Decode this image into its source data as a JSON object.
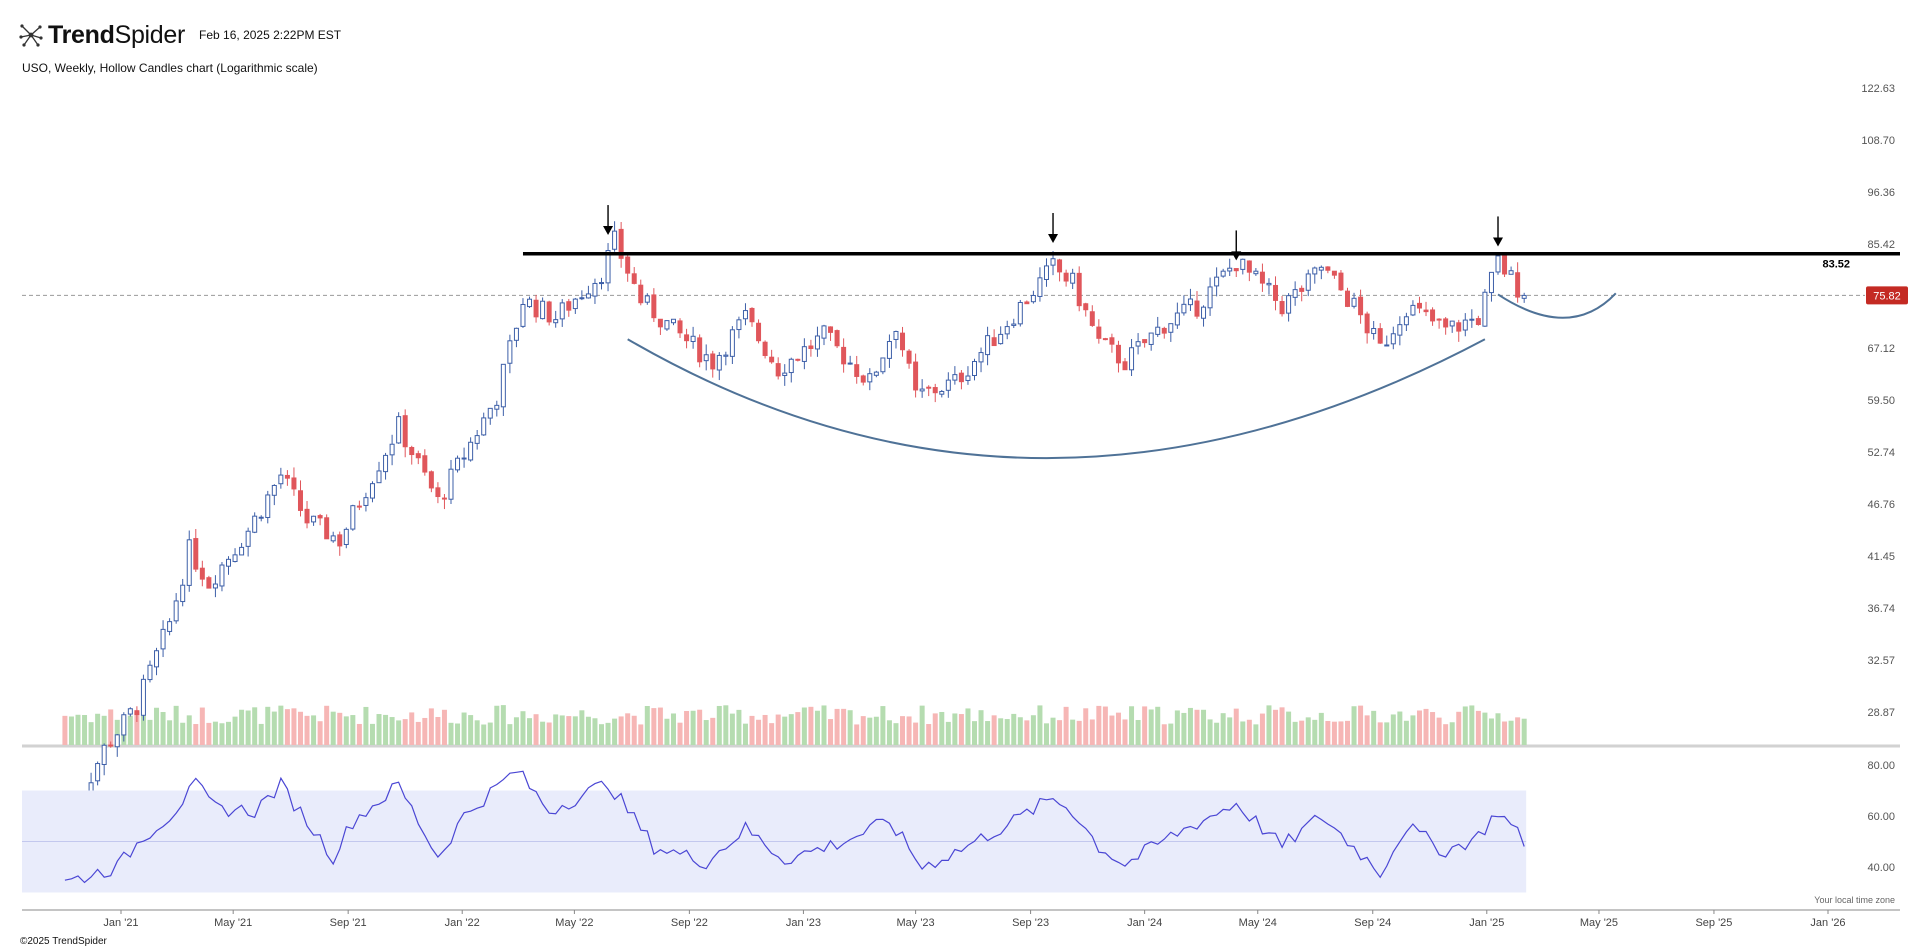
{
  "header": {
    "brand_part1": "Trend",
    "brand_part2": "Spider",
    "timestamp": "Feb 16, 2025 2:22PM EST"
  },
  "footer": {
    "copyright": "©2025 TrendSpider",
    "timezone_note": "Your local time zone"
  },
  "colors": {
    "up": "#3d5fa8",
    "down": "#e0565b",
    "vol_up": "#b5dcb0",
    "vol_down": "#f6b6b5",
    "rsi_line": "#4a46d4",
    "rsi_band": "#e9ecfb",
    "curve": "#4f7297",
    "resistance": "#000000",
    "price_badge": "#c42a23"
  },
  "chart_data": {
    "type": "candlestick",
    "title": "USO, Weekly, Hollow Candles chart (Logarithmic scale)",
    "scale": "log",
    "y_ticks": [
      28.87,
      32.57,
      36.74,
      41.45,
      46.76,
      52.74,
      59.5,
      67.12,
      75.82,
      85.42,
      96.36,
      108.7,
      122.63
    ],
    "x_ticks": [
      "Jan '21",
      "May '21",
      "Sep '21",
      "Jan '22",
      "May '22",
      "Sep '22",
      "Jan '23",
      "May '23",
      "Sep '23",
      "Jan '24",
      "May '24",
      "Sep '24",
      "Jan '25",
      "May '25",
      "Sep '25",
      "Jan '26"
    ],
    "x_tick_dates": [
      "2021-01-01",
      "2021-05-01",
      "2021-09-01",
      "2022-01-01",
      "2022-05-01",
      "2022-09-01",
      "2023-01-01",
      "2023-05-01",
      "2023-09-01",
      "2024-01-01",
      "2024-05-01",
      "2024-09-01",
      "2025-01-01",
      "2025-05-01",
      "2025-09-01",
      "2026-01-01"
    ],
    "resistance_level": 83.52,
    "resistance_label": "83.52",
    "last_price": 75.82,
    "last_price_label": "75.82",
    "arrow_dates": [
      "2022-06-06",
      "2023-09-25",
      "2024-04-08",
      "2025-01-13"
    ],
    "cup_curve_points": [
      {
        "date": "2022-06-27",
        "price": 68.5
      },
      {
        "date": "2023-09-18",
        "price": 52.0
      },
      {
        "date": "2024-12-30",
        "price": 68.5
      }
    ],
    "handle_curve_points": [
      {
        "date": "2025-01-13",
        "price": 76.0
      },
      {
        "date": "2025-03-24",
        "price": 72.0
      },
      {
        "date": "2025-05-19",
        "price": 76.2
      }
    ],
    "close_path": [
      {
        "date": "2020-11-02",
        "price": 22.0
      },
      {
        "date": "2020-12-14",
        "price": 26.5
      },
      {
        "date": "2021-01-18",
        "price": 29.3
      },
      {
        "date": "2021-02-22",
        "price": 35.5
      },
      {
        "date": "2021-03-15",
        "price": 42.0
      },
      {
        "date": "2021-04-05",
        "price": 39.0
      },
      {
        "date": "2021-05-17",
        "price": 44.0
      },
      {
        "date": "2021-06-21",
        "price": 50.0
      },
      {
        "date": "2021-07-19",
        "price": 45.0
      },
      {
        "date": "2021-08-23",
        "price": 43.0
      },
      {
        "date": "2021-09-27",
        "price": 50.0
      },
      {
        "date": "2021-10-25",
        "price": 56.0
      },
      {
        "date": "2021-12-06",
        "price": 47.0
      },
      {
        "date": "2021-12-27",
        "price": 51.0
      },
      {
        "date": "2022-02-07",
        "price": 60.0
      },
      {
        "date": "2022-03-07",
        "price": 75.0
      },
      {
        "date": "2022-04-11",
        "price": 72.0
      },
      {
        "date": "2022-05-30",
        "price": 80.0
      },
      {
        "date": "2022-06-13",
        "price": 86.0
      },
      {
        "date": "2022-07-11",
        "price": 75.0
      },
      {
        "date": "2022-08-15",
        "price": 70.0
      },
      {
        "date": "2022-09-26",
        "price": 65.0
      },
      {
        "date": "2022-10-31",
        "price": 72.0
      },
      {
        "date": "2022-12-05",
        "price": 64.0
      },
      {
        "date": "2023-01-23",
        "price": 69.0
      },
      {
        "date": "2023-03-13",
        "price": 62.0
      },
      {
        "date": "2023-04-10",
        "price": 71.0
      },
      {
        "date": "2023-05-01",
        "price": 60.0
      },
      {
        "date": "2023-06-12",
        "price": 62.0
      },
      {
        "date": "2023-07-31",
        "price": 70.0
      },
      {
        "date": "2023-09-25",
        "price": 81.0
      },
      {
        "date": "2023-10-16",
        "price": 78.0
      },
      {
        "date": "2023-11-13",
        "price": 68.0
      },
      {
        "date": "2023-12-11",
        "price": 65.0
      },
      {
        "date": "2024-01-22",
        "price": 71.0
      },
      {
        "date": "2024-02-26",
        "price": 74.0
      },
      {
        "date": "2024-04-08",
        "price": 82.0
      },
      {
        "date": "2024-05-27",
        "price": 74.0
      },
      {
        "date": "2024-06-24",
        "price": 78.0
      },
      {
        "date": "2024-07-08",
        "price": 81.0
      },
      {
        "date": "2024-08-12",
        "price": 74.0
      },
      {
        "date": "2024-09-09",
        "price": 67.0
      },
      {
        "date": "2024-10-07",
        "price": 74.0
      },
      {
        "date": "2024-11-18",
        "price": 70.0
      },
      {
        "date": "2024-12-23",
        "price": 72.0
      },
      {
        "date": "2025-01-13",
        "price": 82.0
      },
      {
        "date": "2025-02-10",
        "price": 75.82
      }
    ],
    "volume_note": "Volume bars shown without a printed scale",
    "rsi": {
      "y_ticks": [
        "80.00",
        "60.00",
        "40.00"
      ],
      "band": [
        30,
        70
      ],
      "midline": 50,
      "path": [
        {
          "date": "2020-11-02",
          "value": 34
        },
        {
          "date": "2020-12-28",
          "value": 40
        },
        {
          "date": "2021-01-25",
          "value": 52
        },
        {
          "date": "2021-02-22",
          "value": 60
        },
        {
          "date": "2021-03-22",
          "value": 72
        },
        {
          "date": "2021-04-12",
          "value": 63
        },
        {
          "date": "2021-05-24",
          "value": 62
        },
        {
          "date": "2021-06-21",
          "value": 72
        },
        {
          "date": "2021-07-19",
          "value": 58
        },
        {
          "date": "2021-08-16",
          "value": 44
        },
        {
          "date": "2021-09-06",
          "value": 58
        },
        {
          "date": "2021-10-25",
          "value": 72
        },
        {
          "date": "2021-12-06",
          "value": 44
        },
        {
          "date": "2022-01-03",
          "value": 60
        },
        {
          "date": "2022-02-28",
          "value": 78
        },
        {
          "date": "2022-04-04",
          "value": 62
        },
        {
          "date": "2022-06-06",
          "value": 73
        },
        {
          "date": "2022-07-25",
          "value": 48
        },
        {
          "date": "2022-09-19",
          "value": 42
        },
        {
          "date": "2022-10-31",
          "value": 55
        },
        {
          "date": "2022-12-12",
          "value": 43
        },
        {
          "date": "2023-02-13",
          "value": 50
        },
        {
          "date": "2023-04-03",
          "value": 58
        },
        {
          "date": "2023-05-08",
          "value": 40
        },
        {
          "date": "2023-06-19",
          "value": 47
        },
        {
          "date": "2023-08-14",
          "value": 58
        },
        {
          "date": "2023-09-25",
          "value": 67
        },
        {
          "date": "2023-10-16",
          "value": 62
        },
        {
          "date": "2023-11-13",
          "value": 48
        },
        {
          "date": "2023-12-11",
          "value": 41
        },
        {
          "date": "2024-01-29",
          "value": 52
        },
        {
          "date": "2024-04-08",
          "value": 65
        },
        {
          "date": "2024-05-27",
          "value": 48
        },
        {
          "date": "2024-07-08",
          "value": 60
        },
        {
          "date": "2024-09-09",
          "value": 38
        },
        {
          "date": "2024-10-07",
          "value": 56
        },
        {
          "date": "2024-11-18",
          "value": 46
        },
        {
          "date": "2024-12-23",
          "value": 52
        },
        {
          "date": "2025-01-13",
          "value": 62
        },
        {
          "date": "2025-02-10",
          "value": 50
        }
      ]
    }
  }
}
